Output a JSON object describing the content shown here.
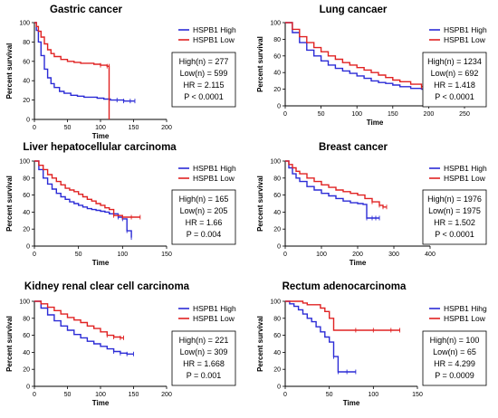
{
  "chart_data": [
    {
      "type": "line",
      "title": "Gastric cancer",
      "xlabel": "Time",
      "ylabel": "Percent survival",
      "xlim": [
        0,
        200
      ],
      "ylim": [
        0,
        100
      ],
      "xticks": [
        "0",
        "50",
        "100",
        "150",
        "200"
      ],
      "yticks": [
        "0",
        "20",
        "40",
        "60",
        "80",
        "100"
      ],
      "legend": "top-right",
      "stats": [
        "High(n) = 277",
        "Low(n) = 599",
        "HR = 2.115",
        "P < 0.0001"
      ],
      "series": [
        {
          "name": "HSPB1 High",
          "color": "#2b2bd6",
          "x": [
            0,
            3,
            6,
            10,
            15,
            20,
            25,
            30,
            38,
            45,
            55,
            65,
            75,
            85,
            95,
            105,
            115,
            125,
            135,
            145,
            152
          ],
          "y": [
            100,
            92,
            80,
            66,
            52,
            43,
            37,
            33,
            29,
            27,
            25,
            24,
            23,
            23,
            22,
            21,
            20,
            20,
            19,
            19,
            19
          ]
        },
        {
          "name": "HSPB1 Low",
          "color": "#e02222",
          "x": [
            0,
            3,
            6,
            10,
            15,
            20,
            25,
            30,
            40,
            50,
            60,
            70,
            80,
            90,
            100,
            110,
            113,
            113
          ],
          "y": [
            100,
            96,
            91,
            85,
            78,
            72,
            68,
            65,
            62,
            60,
            59,
            58,
            58,
            57,
            56,
            55,
            55,
            0
          ]
        }
      ]
    },
    {
      "type": "line",
      "title": "Lung cancaer",
      "xlabel": "Time",
      "ylabel": "Percent survival",
      "xlim": [
        0,
        250
      ],
      "ylim": [
        0,
        100
      ],
      "xticks": [
        "0",
        "50",
        "100",
        "150",
        "200",
        "250"
      ],
      "yticks": [
        "0",
        "20",
        "40",
        "60",
        "80",
        "100"
      ],
      "legend": "top-right",
      "stats": [
        "High(n) = 1234",
        "Low(n) = 692",
        "HR = 1.418",
        "P < 0.0001"
      ],
      "series": [
        {
          "name": "HSPB1 High",
          "color": "#2b2bd6",
          "x": [
            0,
            10,
            20,
            30,
            40,
            50,
            60,
            70,
            80,
            90,
            100,
            110,
            120,
            130,
            140,
            150,
            160,
            175,
            190,
            200,
            215,
            225,
            230,
            235
          ],
          "y": [
            100,
            88,
            76,
            67,
            60,
            54,
            49,
            45,
            42,
            39,
            36,
            33,
            30,
            28,
            27,
            25,
            23,
            21,
            20,
            20,
            20,
            18,
            12,
            10
          ]
        },
        {
          "name": "HSPB1 Low",
          "color": "#e02222",
          "x": [
            0,
            10,
            20,
            30,
            40,
            50,
            60,
            70,
            80,
            90,
            100,
            110,
            120,
            130,
            140,
            150,
            160,
            175,
            190,
            200,
            205,
            210
          ],
          "y": [
            100,
            92,
            83,
            76,
            70,
            65,
            60,
            56,
            52,
            49,
            46,
            43,
            40,
            37,
            34,
            31,
            29,
            26,
            23,
            22,
            18,
            18
          ]
        }
      ]
    },
    {
      "type": "line",
      "title": "Liver hepatocellular carcinoma",
      "xlabel": "Time",
      "ylabel": "Percent survival",
      "xlim": [
        0,
        150
      ],
      "ylim": [
        0,
        100
      ],
      "xticks": [
        "0",
        "50",
        "100",
        "150"
      ],
      "yticks": [
        "0",
        "20",
        "40",
        "60",
        "80",
        "100"
      ],
      "legend": "top-right",
      "stats": [
        "High(n) = 165",
        "Low(n) = 205",
        "HR = 1.66",
        "P = 0.004"
      ],
      "series": [
        {
          "name": "HSPB1 High",
          "color": "#2b2bd6",
          "x": [
            0,
            5,
            10,
            15,
            20,
            25,
            30,
            35,
            40,
            45,
            50,
            55,
            60,
            65,
            70,
            75,
            80,
            85,
            90,
            95,
            100,
            105,
            110
          ],
          "y": [
            100,
            90,
            80,
            73,
            67,
            62,
            58,
            55,
            52,
            50,
            48,
            46,
            44,
            43,
            42,
            41,
            40,
            38,
            38,
            34,
            32,
            18,
            10
          ]
        },
        {
          "name": "HSPB1 Low",
          "color": "#e02222",
          "x": [
            0,
            5,
            10,
            15,
            20,
            25,
            30,
            35,
            40,
            45,
            50,
            55,
            60,
            65,
            70,
            75,
            80,
            85,
            90,
            100,
            110,
            120
          ],
          "y": [
            100,
            95,
            90,
            84,
            80,
            76,
            72,
            68,
            66,
            64,
            61,
            58,
            55,
            53,
            50,
            48,
            45,
            43,
            36,
            34,
            34,
            34
          ]
        }
      ]
    },
    {
      "type": "line",
      "title": "Breast cancer",
      "xlabel": "Time",
      "ylabel": "Percent survival",
      "xlim": [
        0,
        400
      ],
      "ylim": [
        0,
        100
      ],
      "xticks": [
        "0",
        "100",
        "200",
        "300",
        "400"
      ],
      "yticks": [
        "0",
        "20",
        "40",
        "60",
        "80",
        "100"
      ],
      "legend": "top-right",
      "stats": [
        "High(n) = 1976",
        "Low(n) = 1975",
        "HR = 1.502",
        "P < 0.0001"
      ],
      "series": [
        {
          "name": "HSPB1 High",
          "color": "#2b2bd6",
          "x": [
            0,
            10,
            20,
            30,
            40,
            60,
            80,
            100,
            120,
            140,
            160,
            180,
            200,
            215,
            225,
            240,
            250,
            260
          ],
          "y": [
            100,
            92,
            85,
            80,
            76,
            70,
            66,
            62,
            59,
            56,
            53,
            51,
            50,
            49,
            33,
            33,
            33,
            33
          ]
        },
        {
          "name": "HSPB1 Low",
          "color": "#e02222",
          "x": [
            0,
            10,
            20,
            30,
            40,
            60,
            80,
            100,
            120,
            140,
            160,
            180,
            200,
            220,
            240,
            260,
            270,
            280
          ],
          "y": [
            100,
            96,
            92,
            88,
            85,
            80,
            76,
            72,
            69,
            66,
            64,
            62,
            60,
            56,
            52,
            48,
            46,
            46
          ]
        }
      ]
    },
    {
      "type": "line",
      "title": "Kidney renal clear cell carcinoma",
      "xlabel": "Time",
      "ylabel": "Percent survival",
      "xlim": [
        0,
        200
      ],
      "ylim": [
        0,
        100
      ],
      "xticks": [
        "0",
        "50",
        "100",
        "150",
        "200"
      ],
      "yticks": [
        "0",
        "20",
        "40",
        "60",
        "80",
        "100"
      ],
      "legend": "top-right",
      "stats": [
        "High(n) = 221",
        "Low(n) = 309",
        "HR = 1.668",
        "P = 0.001"
      ],
      "series": [
        {
          "name": "HSPB1 High",
          "color": "#2b2bd6",
          "x": [
            0,
            10,
            20,
            30,
            40,
            50,
            60,
            70,
            80,
            90,
            100,
            110,
            120,
            130,
            140,
            150
          ],
          "y": [
            100,
            92,
            84,
            77,
            71,
            66,
            61,
            57,
            53,
            50,
            47,
            44,
            41,
            39,
            38,
            38
          ]
        },
        {
          "name": "HSPB1 Low",
          "color": "#e02222",
          "x": [
            0,
            10,
            20,
            30,
            40,
            50,
            60,
            70,
            80,
            90,
            100,
            110,
            120,
            130,
            135
          ],
          "y": [
            100,
            97,
            93,
            89,
            85,
            81,
            78,
            75,
            71,
            68,
            64,
            60,
            58,
            57,
            57
          ]
        }
      ]
    },
    {
      "type": "line",
      "title": "Rectum adenocarcinoma",
      "xlabel": "Time",
      "ylabel": "Percent survival",
      "xlim": [
        0,
        150
      ],
      "ylim": [
        0,
        100
      ],
      "xticks": [
        "0",
        "50",
        "100",
        "150"
      ],
      "yticks": [
        "0",
        "20",
        "40",
        "60",
        "80",
        "100"
      ],
      "legend": "top-right",
      "stats": [
        "High(n) = 100",
        "Low(n) = 65",
        "HR = 4.299",
        "P = 0.0009"
      ],
      "series": [
        {
          "name": "HSPB1 Hihg",
          "color": "#2b2bd6",
          "x": [
            0,
            5,
            10,
            15,
            20,
            25,
            30,
            35,
            40,
            45,
            50,
            55,
            60,
            70,
            80
          ],
          "y": [
            100,
            97,
            94,
            90,
            85,
            80,
            76,
            70,
            64,
            58,
            52,
            35,
            17,
            17,
            17
          ]
        },
        {
          "name": "HSPB1 Low",
          "color": "#e02222",
          "x": [
            0,
            10,
            20,
            25,
            30,
            40,
            45,
            50,
            55,
            60,
            70,
            80,
            100,
            120,
            130
          ],
          "y": [
            100,
            100,
            98,
            96,
            96,
            92,
            88,
            80,
            66,
            66,
            66,
            66,
            66,
            66,
            66
          ]
        }
      ]
    }
  ]
}
